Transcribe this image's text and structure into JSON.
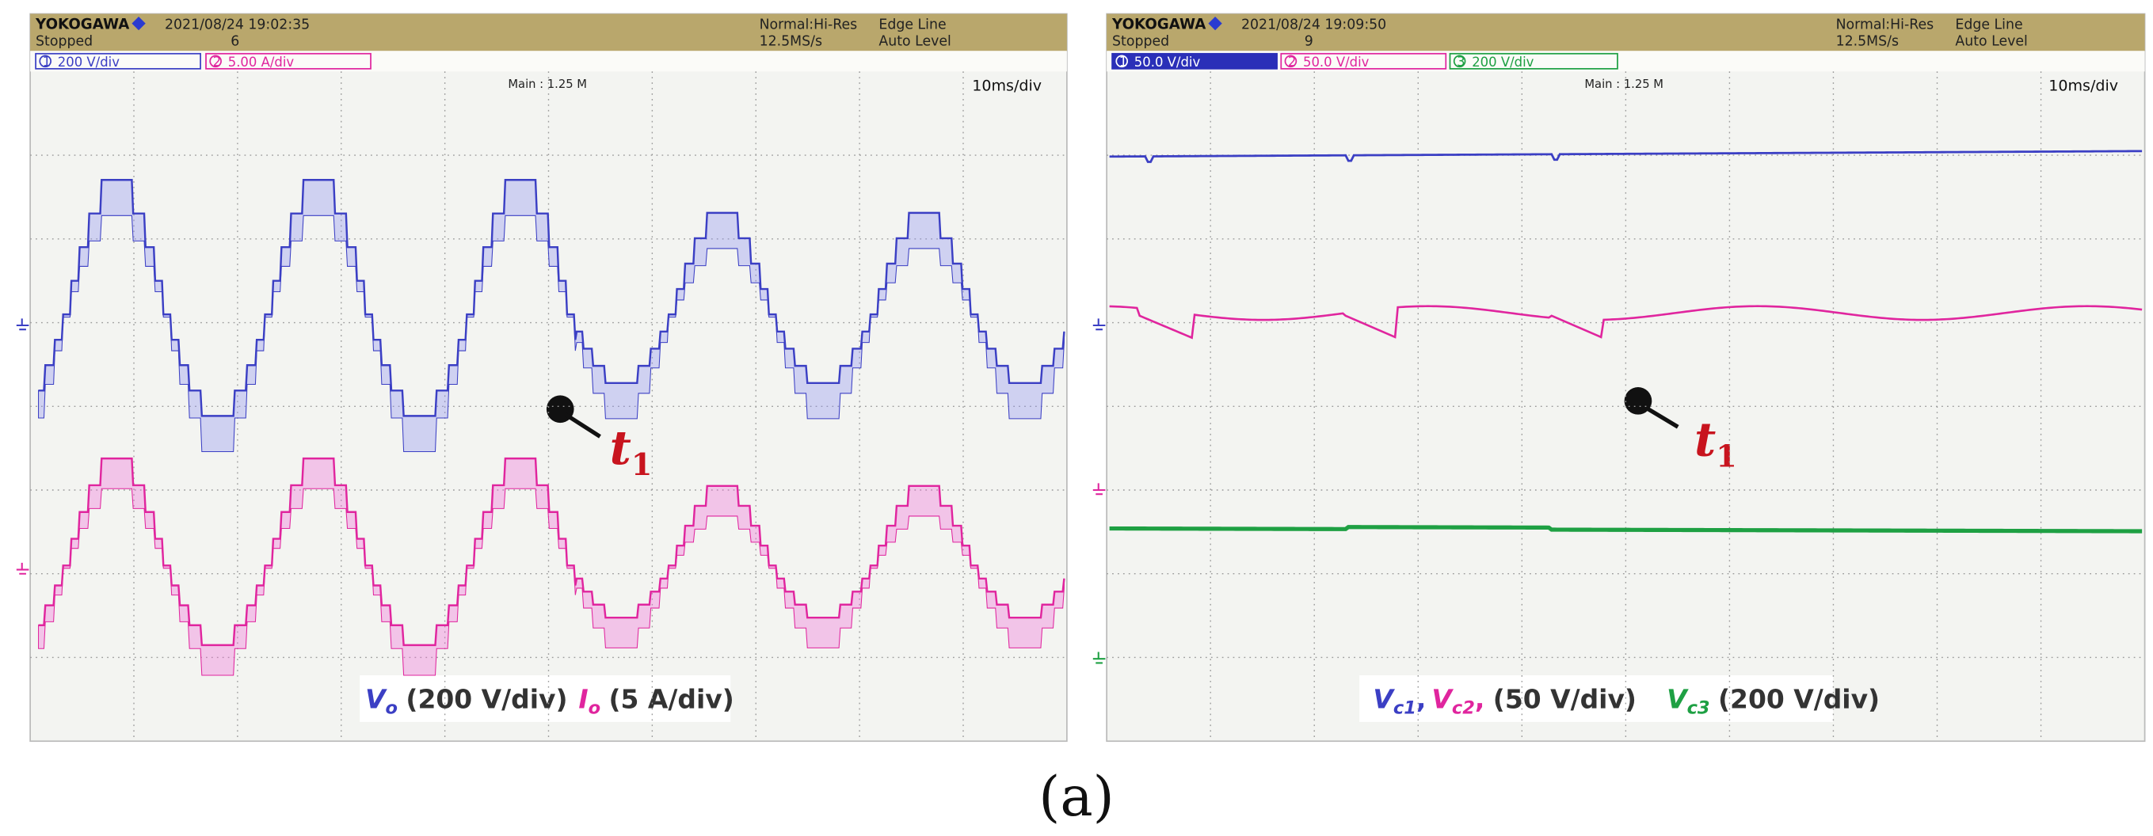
{
  "figure_label": "(a)",
  "scopes": [
    {
      "brand": "YOKOGAWA",
      "datetime": "2021/08/24 19:02:35",
      "status": "Stopped",
      "count": "6",
      "mode": "Normal:Hi-Res",
      "sample_rate": "12.5MS/s",
      "trigger": "Edge Line",
      "trigger_level": "Auto Level",
      "channels": [
        {
          "number": "1",
          "scale": "200 V/div"
        },
        {
          "number": "2",
          "scale": "5.00 A/div"
        }
      ],
      "record": "Main : 1.25 M",
      "timebase": "10ms/div",
      "marker": {
        "symbol": "t",
        "subscript": "1"
      },
      "caption": [
        "V",
        "o",
        "(200 V/div)",
        "I",
        "o",
        "(5 A/div)"
      ]
    },
    {
      "brand": "YOKOGAWA",
      "datetime": "2021/08/24 19:09:50",
      "status": "Stopped",
      "count": "9",
      "mode": "Normal:Hi-Res",
      "sample_rate": "12.5MS/s",
      "trigger": "Edge Line",
      "trigger_level": "Auto Level",
      "channels": [
        {
          "number": "1",
          "scale": "50.0 V/div"
        },
        {
          "number": "2",
          "scale": "50.0 V/div"
        },
        {
          "number": "3",
          "scale": "200 V/div"
        }
      ],
      "record": "Main : 1.25 M",
      "timebase": "10ms/div",
      "marker": {
        "symbol": "t",
        "subscript": "1"
      },
      "caption": [
        "V",
        "c1",
        ",",
        "V",
        "c2",
        ",",
        "(50 V/div)",
        "V",
        "c3",
        "(200 V/div)"
      ]
    }
  ]
}
